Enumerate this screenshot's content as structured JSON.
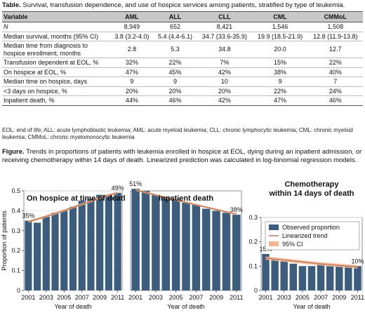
{
  "table": {
    "title": "Table.",
    "caption": " Survival, transfusion dependence, and use of hospice services among patients, stratified by type of leukemia.",
    "headers": [
      "Variable",
      "AML",
      "ALL",
      "CLL",
      "CML",
      "CMMoL"
    ],
    "rows": [
      {
        "label": "N",
        "italic": true,
        "values": [
          "8,949",
          "652",
          "8,421",
          "1,546",
          "1,508"
        ]
      },
      {
        "label": "Median survival, months (95% CI)",
        "values": [
          "3.8 (3.2-4.0)",
          "5.4 (4.4-6.1)",
          "34.7 (33.6-35.9)",
          "19.9 (18.5-21.9)",
          "12.8 (11.9-13.8)"
        ]
      },
      {
        "label": "Median time from diagnosis to hospice enrollment, months",
        "values": [
          "2.8",
          "5.3",
          "34.8",
          "20.0",
          "12.7"
        ]
      },
      {
        "label": "Transfusion dependent at EOL, %",
        "values": [
          "32%",
          "22%",
          "7%",
          "15%",
          "22%"
        ]
      },
      {
        "label": "On hospice at EOL, %",
        "values": [
          "47%",
          "45%",
          "42%",
          "38%",
          "40%"
        ]
      },
      {
        "label": "Median time on hospice, days",
        "values": [
          "9",
          "9",
          "10",
          "9",
          "7"
        ]
      },
      {
        "label": "<3 days on hospice, %",
        "values": [
          "20%",
          "20%",
          "20%",
          "22%",
          "24%"
        ]
      },
      {
        "label": "Inpatient death, %",
        "values": [
          "44%",
          "46%",
          "42%",
          "47%",
          "46%"
        ]
      }
    ],
    "footnote": "EOL: end of life; ALL: acute lymphoblastic leukemia; AML: acute myeloid leukemia; CLL: chronic lymphocytic leukemia; CML: chronic myeloid leukemia; CMMoL: chronic myelomonocytic leukemia"
  },
  "figure": {
    "title": "Figure.",
    "caption": " Trends in proportions of patients with leukemia enrolled in hospice at EOL, dying during an inpatient admission, or receiving chemotherapy within 14 days of death. Linearized prediction was calculated in log-binomial regression models."
  },
  "colors": {
    "bar": "#3d5d7f",
    "trend": "#b07055",
    "ci": "#f3b58f",
    "header_bg": "#c8c8c8"
  },
  "chart_data": [
    {
      "type": "bar",
      "title": "On hospice at time of death",
      "xlabel": "Year of death",
      "ylabel": "Proportion of patients",
      "ylim": [
        0,
        0.5
      ],
      "yticks": [
        "0",
        "0.1",
        "0.2",
        "0.3",
        "0.4",
        "0.5"
      ],
      "xticks": [
        "2001",
        "2003",
        "2005",
        "2007",
        "2009",
        "2011"
      ],
      "x": [
        2001,
        2002,
        2003,
        2004,
        2005,
        2006,
        2007,
        2008,
        2009,
        2010,
        2011
      ],
      "values": [
        0.35,
        0.34,
        0.37,
        0.39,
        0.4,
        0.42,
        0.45,
        0.46,
        0.48,
        0.48,
        0.49
      ],
      "trend": [
        0.345,
        0.358,
        0.372,
        0.386,
        0.401,
        0.417,
        0.432,
        0.448,
        0.465,
        0.478,
        0.49
      ],
      "ci_halfwidth": 0.006,
      "annotations": [
        {
          "x": 2001,
          "text": "35%"
        },
        {
          "x": 2011,
          "text": "49%"
        }
      ],
      "grid": true
    },
    {
      "type": "bar",
      "title": "Inpatient death",
      "xlabel": "Year of death",
      "ylabel": "",
      "ylim": [
        0,
        0.5
      ],
      "yticks": [],
      "xticks": [
        "2001",
        "2003",
        "2005",
        "2007",
        "2009",
        "2011"
      ],
      "x": [
        2001,
        2002,
        2003,
        2004,
        2005,
        2006,
        2007,
        2008,
        2009,
        2010,
        2011
      ],
      "values": [
        0.51,
        0.5,
        0.48,
        0.47,
        0.46,
        0.44,
        0.43,
        0.41,
        0.4,
        0.39,
        0.38
      ],
      "trend": [
        0.505,
        0.492,
        0.479,
        0.466,
        0.454,
        0.442,
        0.43,
        0.418,
        0.406,
        0.394,
        0.383
      ],
      "ci_halfwidth": 0.005,
      "annotations": [
        {
          "x": 2001,
          "text": "51%"
        },
        {
          "x": 2011,
          "text": "38%"
        }
      ],
      "grid": true
    },
    {
      "type": "bar",
      "title": "Chemotherapy within 14 days of death",
      "title_lines": [
        "Chemotherapy",
        "within 14 days of death"
      ],
      "xlabel": "Year of death",
      "ylabel": "",
      "ylim": [
        0,
        0.3
      ],
      "yticks": [
        "0",
        "0.1",
        "0.2",
        "0.3"
      ],
      "xticks": [
        "2001",
        "2003",
        "2005",
        "2007",
        "2009",
        "2011"
      ],
      "x": [
        2001,
        2002,
        2003,
        2004,
        2005,
        2006,
        2007,
        2008,
        2009,
        2010,
        2011
      ],
      "values": [
        0.15,
        0.13,
        0.12,
        0.11,
        0.1,
        0.1,
        0.11,
        0.1,
        0.1,
        0.1,
        0.1
      ],
      "trend": [
        0.133,
        0.129,
        0.125,
        0.121,
        0.117,
        0.113,
        0.109,
        0.106,
        0.103,
        0.1,
        0.097
      ],
      "ci_halfwidth": 0.007,
      "annotations": [
        {
          "x": 2001,
          "text": "15%"
        },
        {
          "x": 2011,
          "text": "10%"
        }
      ],
      "legend": {
        "placement": "top-right",
        "entries": [
          "Observed proportion",
          "Linearized trend",
          "95% CI"
        ]
      },
      "grid": true
    }
  ]
}
